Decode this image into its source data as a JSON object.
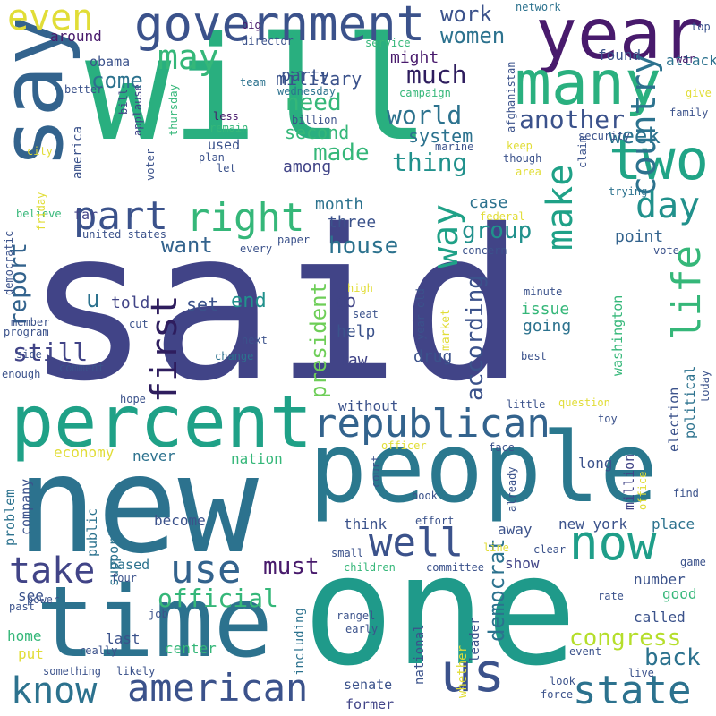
{
  "palette": {
    "darkpurple": "#481a6c",
    "indigo": "#414487",
    "slate": "#3b528b",
    "blue": "#33638d",
    "steel": "#2c728e",
    "teal": "#21918c",
    "jade": "#1fa187",
    "green": "#35b779",
    "lime": "#6ece58",
    "yellowgreen": "#b5de2b",
    "yellow": "#e1dd37"
  },
  "words": [
    "said",
    "will",
    "one",
    "new",
    "people",
    "time",
    "say",
    "year",
    "percent",
    "many",
    "government",
    "two",
    "republican",
    "american",
    "know",
    "state",
    "now",
    "country",
    "right",
    "first",
    "part",
    "way",
    "well",
    "take",
    "use",
    "make",
    "even",
    "life",
    "may",
    "day",
    "us",
    "u",
    "official",
    "house",
    "report",
    "still",
    "thing",
    "world",
    "another",
    "group",
    "according",
    "made",
    "must",
    "president",
    "want",
    "need",
    "come",
    "much",
    "week",
    "work",
    "women",
    "congress",
    "back",
    "democrat",
    "military",
    "second",
    "system",
    "point",
    "party",
    "might",
    "among",
    "told",
    "set",
    "end",
    "month",
    "three",
    "case",
    "go",
    "help",
    "law",
    "drug",
    "issue",
    "going",
    "obama",
    "around",
    "found",
    "attack",
    "used",
    "far",
    "america",
    "washington",
    "election",
    "political",
    "long",
    "million",
    "without",
    "nation",
    "never",
    "become",
    "economy",
    "think",
    "support",
    "public",
    "company",
    "problem",
    "away",
    "new york",
    "place",
    "show",
    "number",
    "good",
    "called",
    "based",
    "see",
    "home",
    "put",
    "last",
    "center",
    "including",
    "national",
    "whether",
    "leader",
    "senate",
    "former",
    "market",
    "big",
    "director",
    "network",
    "top",
    "war",
    "give",
    "family",
    "afghanistan",
    "service",
    "team",
    "better",
    "bill",
    "applause",
    "thursday",
    "wednesday",
    "billion",
    "less",
    "remain",
    "plan",
    "let",
    "city",
    "voter",
    "campaign",
    "marine",
    "keep",
    "though",
    "security",
    "area",
    "claim",
    "trying",
    "federal",
    "believe",
    "friday",
    "united states",
    "democratic",
    "every",
    "paper",
    "concern",
    "vote",
    "high",
    "seat",
    "year old",
    "minute",
    "member",
    "program",
    "cut",
    "next",
    "change",
    "comment",
    "side",
    "best",
    "enough",
    "hope",
    "little",
    "question",
    "toy",
    "today",
    "officer",
    "face",
    "court",
    "book",
    "already",
    "office",
    "find",
    "effort",
    "small",
    "line",
    "clear",
    "children",
    "committee",
    "game",
    "four",
    "power",
    "past",
    "job",
    "rate",
    "rangel",
    "early",
    "something",
    "really",
    "likely",
    "event",
    "look",
    "live",
    "force"
  ]
}
